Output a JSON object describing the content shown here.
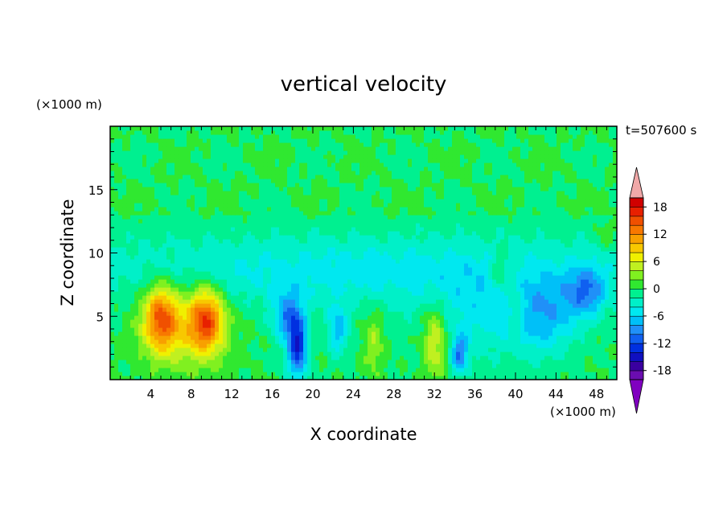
{
  "chart_data": {
    "type": "heatmap",
    "title": "vertical velocity",
    "time_label": "t=507600 s",
    "xlabel": "X coordinate",
    "ylabel": "Z coordinate",
    "x_unit": "(×1000 m)",
    "y_unit": "(×1000 m)",
    "xlim": [
      0,
      50
    ],
    "ylim": [
      0,
      20
    ],
    "x_ticks": [
      4,
      8,
      12,
      16,
      20,
      24,
      28,
      32,
      36,
      40,
      44,
      48
    ],
    "y_ticks": [
      5,
      10,
      15
    ],
    "colorbar": {
      "levels": [
        -20,
        -18,
        -16,
        -14,
        -12,
        -10,
        -8,
        -6,
        -4,
        -2,
        0,
        2,
        4,
        6,
        8,
        10,
        12,
        14,
        16,
        18,
        20
      ],
      "tick_labels": [
        18,
        12,
        6,
        0,
        -6,
        -12,
        -18
      ],
      "colors": [
        "#6a0db0",
        "#3a00a0",
        "#1010c0",
        "#0030e0",
        "#1060f0",
        "#2090f8",
        "#00c0f8",
        "#00e8f0",
        "#00f0c8",
        "#00f090",
        "#30e830",
        "#80f020",
        "#c0f020",
        "#f0f000",
        "#f8c800",
        "#f8a000",
        "#f87800",
        "#f05000",
        "#e82000",
        "#d00000"
      ],
      "over_color": "#f0a8a8",
      "under_color": "#8000c0"
    },
    "features": [
      {
        "x": 5,
        "z": 5,
        "value": 12,
        "sx": 1.6,
        "sz": 2.5
      },
      {
        "x": 9.5,
        "z": 4.8,
        "value": 13,
        "sx": 1.7,
        "sz": 2.5
      },
      {
        "x": 7,
        "z": 4,
        "value": 6,
        "sx": 4,
        "sz": 3
      },
      {
        "x": 18.5,
        "z": 2.5,
        "value": -13,
        "sx": 1,
        "sz": 2.5
      },
      {
        "x": 17.5,
        "z": 5,
        "value": -8,
        "sx": 1.5,
        "sz": 2
      },
      {
        "x": 22.5,
        "z": 4,
        "value": -7,
        "sx": 1,
        "sz": 2
      },
      {
        "x": 32,
        "z": 3.2,
        "value": 7,
        "sx": 1.2,
        "sz": 3
      },
      {
        "x": 26,
        "z": 3,
        "value": 4,
        "sx": 1,
        "sz": 2.5
      },
      {
        "x": 34.5,
        "z": 2,
        "value": -9,
        "sx": 0.8,
        "sz": 1.5
      },
      {
        "x": 38.5,
        "z": 8.5,
        "value": 5,
        "sx": 1,
        "sz": 1.5
      },
      {
        "x": 40,
        "z": 6,
        "value": 4,
        "sx": 0.8,
        "sz": 2
      },
      {
        "x": 47,
        "z": 7,
        "value": -8,
        "sx": 2,
        "sz": 2
      },
      {
        "x": 43,
        "z": 5,
        "value": -6,
        "sx": 3,
        "sz": 3
      },
      {
        "x": 25,
        "z": 8.5,
        "value": -3,
        "sx": 20,
        "sz": 2.5
      },
      {
        "x": 37,
        "z": 5,
        "value": -4,
        "sx": 6,
        "sz": 3.5
      },
      {
        "x": 49,
        "z": 11.5,
        "value": 3,
        "sx": 1,
        "sz": 1
      }
    ]
  }
}
